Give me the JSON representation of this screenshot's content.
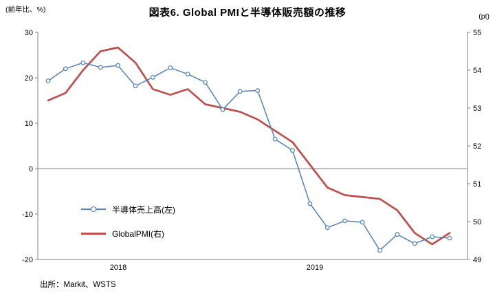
{
  "header": {
    "title": "図表6.  Global PMIと半導体販売額の推移"
  },
  "axes": {
    "left_unit": "(前年比、%)",
    "right_unit": "(pt)",
    "left_ticks": [
      30,
      20,
      10,
      0,
      -10,
      -20
    ],
    "right_ticks": [
      55,
      54,
      53,
      52,
      51,
      50,
      49
    ],
    "x_labels": [
      {
        "label": "2018",
        "x": 172
      },
      {
        "label": "2019",
        "x": 458
      }
    ]
  },
  "legend": {
    "series1": "半導体売上高(左)",
    "series2": "GlobalPMI(右)"
  },
  "source": "出所：Markit、WSTS",
  "colors": {
    "semiconductor": "#4f81bd",
    "pmi": "#c0504d",
    "axis": "#808080",
    "zero_line": "#7f7f7f",
    "text": "#000000"
  },
  "chart_data": {
    "type": "line",
    "title": "図表6. Global PMIと半導体販売額の推移",
    "x": [
      "2017-10",
      "2017-11",
      "2017-12",
      "2018-01",
      "2018-02",
      "2018-03",
      "2018-04",
      "2018-05",
      "2018-06",
      "2018-07",
      "2018-08",
      "2018-09",
      "2018-10",
      "2018-11",
      "2018-12",
      "2019-01",
      "2019-02",
      "2019-03",
      "2019-04",
      "2019-05",
      "2019-06",
      "2019-07",
      "2019-08",
      "2019-09"
    ],
    "x_tick_labels": [
      "2018",
      "2019"
    ],
    "series": [
      {
        "name": "半導体売上高(左)",
        "axis": "left",
        "color": "#4f81bd",
        "marker": "circle",
        "values": [
          19.3,
          22.0,
          23.3,
          22.3,
          22.7,
          18.2,
          20.1,
          22.2,
          20.8,
          19.0,
          13.0,
          17.0,
          17.2,
          6.5,
          4.0,
          -7.7,
          -13.0,
          -11.5,
          -11.8,
          -18.0,
          -14.5,
          -16.5,
          -15.0,
          -15.3
        ]
      },
      {
        "name": "GlobalPMI(右)",
        "axis": "right",
        "color": "#c0504d",
        "marker": "none",
        "values": [
          53.2,
          53.4,
          54.0,
          54.5,
          54.6,
          54.2,
          53.5,
          53.35,
          53.5,
          53.1,
          53.0,
          52.9,
          52.7,
          52.4,
          52.1,
          51.5,
          50.9,
          50.7,
          50.65,
          50.6,
          50.3,
          49.7,
          49.4,
          49.7
        ]
      }
    ],
    "left_axis": {
      "label": "(前年比、%)",
      "range": [
        -20,
        30
      ]
    },
    "right_axis": {
      "label": "(pt)",
      "range": [
        49,
        55
      ]
    },
    "grid": "zero-line-only",
    "legend_position": "inside-left"
  }
}
